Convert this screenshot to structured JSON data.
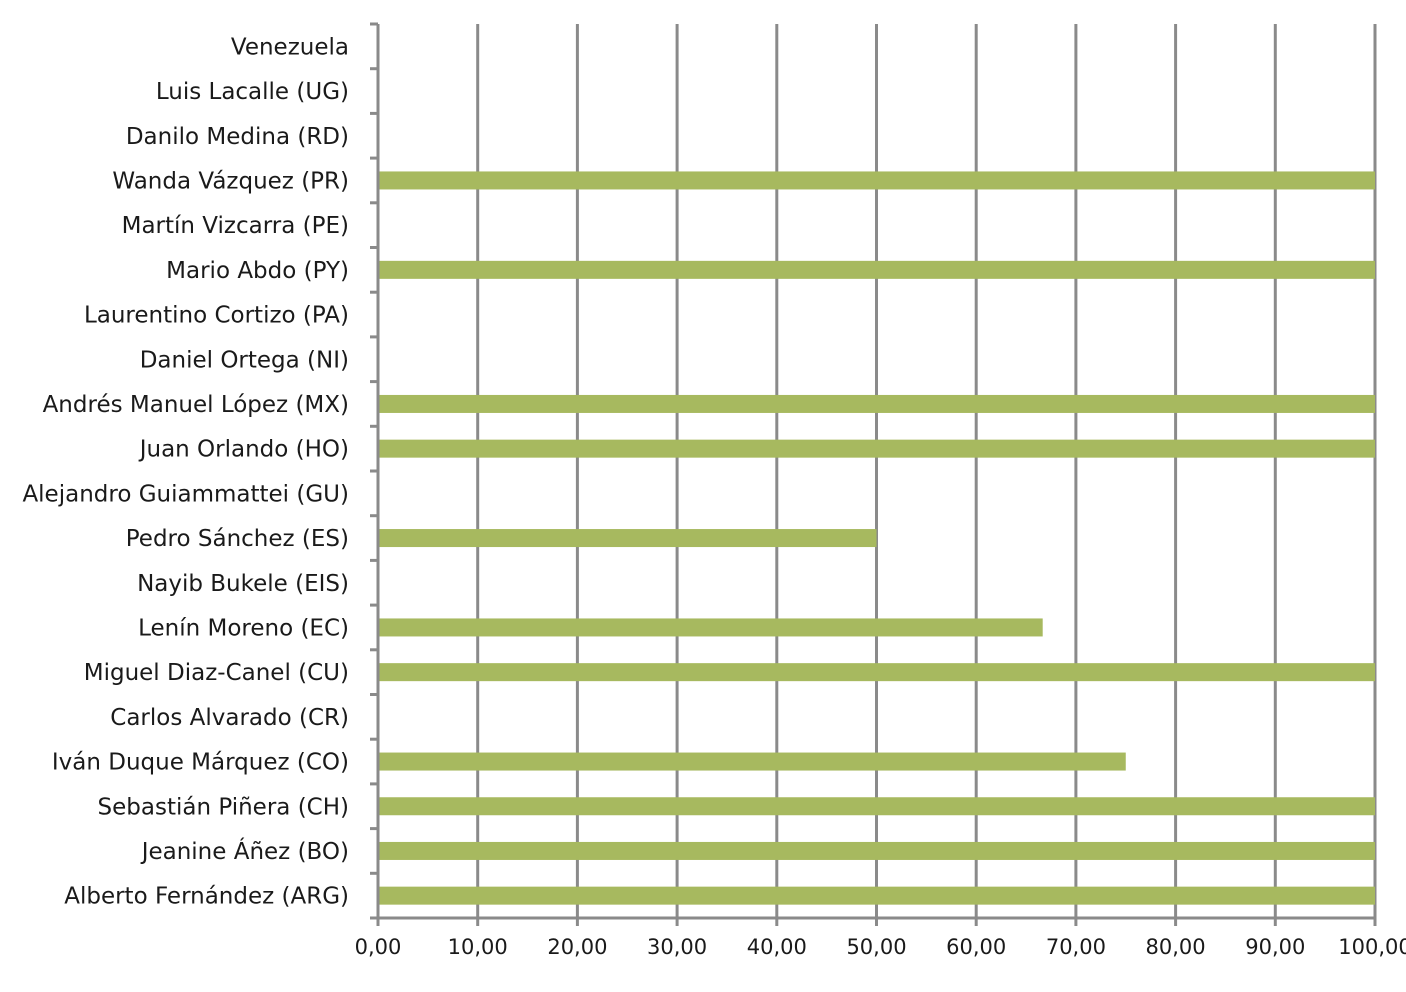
{
  "chart_data": {
    "type": "bar",
    "orientation": "horizontal",
    "title": "",
    "xlabel": "",
    "ylabel": "",
    "categories": [
      "Alberto Fernández (ARG)",
      "Jeanine Áñez (BO)",
      "Sebastián Piñera (CH)",
      "Iván Duque Márquez (CO)",
      "Carlos Alvarado (CR)",
      "Miguel Diaz-Canel (CU)",
      "Lenín Moreno (EC)",
      "Nayib Bukele (EIS)",
      "Pedro Sánchez (ES)",
      "Alejandro Guiammattei (GU)",
      "Juan Orlando (HO)",
      "Andrés Manuel López  (MX)",
      "Daniel Ortega (NI)",
      "Laurentino Cortizo (PA)",
      "Mario Abdo (PY)",
      "Martín Vizcarra (PE)",
      "Wanda Vázquez (PR)",
      "Danilo Medina (RD)",
      "Luis Lacalle (UG)",
      "Venezuela"
    ],
    "values": [
      100,
      100,
      100,
      75,
      0,
      100,
      66.67,
      0,
      50,
      0,
      100,
      100,
      0,
      0,
      100,
      0,
      100,
      0,
      0,
      0
    ],
    "xlim": [
      0,
      100
    ],
    "x_ticks": [
      "0,00",
      "10,00",
      "20,00",
      "30,00",
      "40,00",
      "50,00",
      "60,00",
      "70,00",
      "80,00",
      "90,00",
      "100,00"
    ],
    "grid": "vertical",
    "legend": "none",
    "colors": {
      "bar": "#a7b95f",
      "grid": "#8a8a8a",
      "axis": "#8a8a8a",
      "text": "#1a1a1a"
    }
  }
}
